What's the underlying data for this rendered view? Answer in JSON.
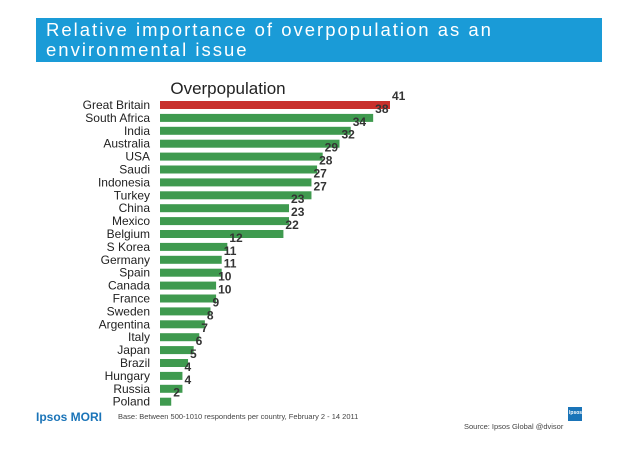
{
  "header": {
    "title": "Relative importance of overpopulation as an environmental issue"
  },
  "chart_data": {
    "type": "bar",
    "orientation": "horizontal",
    "title": "Overpopulation",
    "categories": [
      "Great Britain",
      "South Africa",
      "India",
      "Australia",
      "USA",
      "Saudi",
      "Indonesia",
      "Turkey",
      "China",
      "Mexico",
      "Belgium",
      "S Korea",
      "Germany",
      "Spain",
      "Canada",
      "France",
      "Sweden",
      "Argentina",
      "Italy",
      "Japan",
      "Brazil",
      "Hungary",
      "Russia",
      "Poland"
    ],
    "values": [
      41,
      38,
      34,
      32,
      29,
      28,
      27,
      27,
      23,
      23,
      22,
      12,
      11,
      11,
      10,
      10,
      9,
      8,
      7,
      6,
      5,
      4,
      4,
      2
    ],
    "highlight_index": 0,
    "colors": {
      "default": "#3f9a4f",
      "highlight": "#c8302c"
    },
    "xlabel": "",
    "ylabel": "",
    "xlim": [
      0,
      41
    ]
  },
  "footer": {
    "brand": "Ipsos MORI",
    "base_note": "Base: Between 500-1010 respondents per country, February 2 - 14 2011",
    "source": "Source: Ipsos Global @dvisor",
    "corner_logo_text": "Ipsos"
  }
}
